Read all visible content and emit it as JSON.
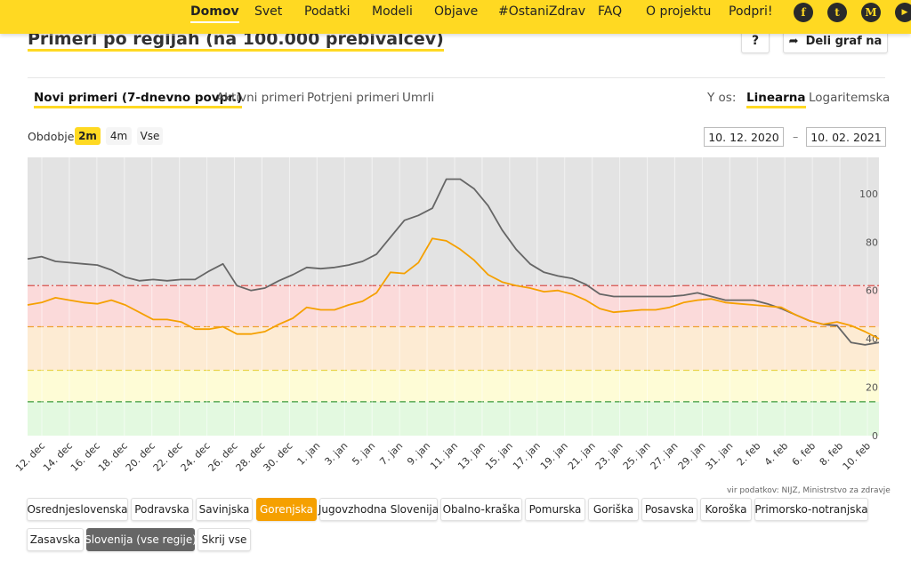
{
  "nav": {
    "items": [
      "Domov",
      "Svet",
      "Podatki",
      "Modeli",
      "Objave",
      "#OstaniZdrav",
      "FAQ",
      "O projektu",
      "Podpri!"
    ],
    "active": "Domov",
    "social": [
      {
        "icon": "facebook-icon",
        "glyph": "f"
      },
      {
        "icon": "twitter-icon",
        "glyph": "t"
      },
      {
        "icon": "medium-icon",
        "glyph": "M"
      },
      {
        "icon": "youtube-icon",
        "glyph": "▶"
      }
    ]
  },
  "title": "Primeri po regijah (na 100.000 prebivalcev)",
  "help_label": "?",
  "share_label": "Deli graf na",
  "tabs": [
    "Novi primeri (7-dnevno povpr.)",
    "Aktivni primeri",
    "Potrjeni primeri",
    "Umrli"
  ],
  "yaxis_label": "Y os:",
  "yaxis_options": [
    "Linearna",
    "Logaritemska"
  ],
  "period": {
    "label": "Obdobje",
    "options": [
      "2m",
      "4m",
      "Vse"
    ],
    "active": "2m"
  },
  "dates": {
    "from": "10. 12. 2020",
    "separator": "–",
    "to": "10. 02. 2021"
  },
  "source": "vir podatkov: NIJZ, Ministrstvo za zdravje",
  "regions": [
    "Osrednjeslovenska",
    "Podravska",
    "Savinjska",
    "Gorenjska",
    "Jugovzhodna Slovenija",
    "Obalno-kraška",
    "Pomurska",
    "Goriška",
    "Posavska",
    "Koroška",
    "Primorsko-notranjska",
    "Zasavska",
    "Slovenija (vse regije)",
    "Skrij vse"
  ],
  "colors": {
    "accent": "#ffd922",
    "gorenjska": "#f5a000",
    "slovenija": "#666666"
  },
  "chart_data": {
    "type": "line",
    "y_ticks": [
      0,
      20,
      40,
      60,
      80,
      100
    ],
    "ylim": [
      0,
      115
    ],
    "x_ticks": [
      "12. dec",
      "14. dec",
      "16. dec",
      "18. dec",
      "20. dec",
      "22. dec",
      "24. dec",
      "26. dec",
      "28. dec",
      "30. dec",
      "1. jan",
      "3. jan",
      "5. jan",
      "7. jan",
      "9. jan",
      "11. jan",
      "13. jan",
      "15. jan",
      "17. jan",
      "19. jan",
      "21. jan",
      "23. jan",
      "25. jan",
      "27. jan",
      "29. jan",
      "31. jan",
      "2. feb",
      "4. feb",
      "6. feb",
      "8. feb",
      "10. feb"
    ],
    "bands": [
      {
        "from": 62,
        "to": 115,
        "color": "#e3e3e3",
        "line_color": "#d9534f"
      },
      {
        "from": 45,
        "to": 62,
        "color": "#fbdada",
        "line_color": "#f0a030"
      },
      {
        "from": 27,
        "to": 45,
        "color": "#fdebd3",
        "line_color": "#e8d44d"
      },
      {
        "from": 14,
        "to": 27,
        "color": "#fefcd6",
        "line_color": "#3a9a3a"
      },
      {
        "from": 0,
        "to": 14,
        "color": "#e3f9e0",
        "line_color": null
      }
    ],
    "threshold_lines": [
      62,
      45,
      27,
      14
    ],
    "series": [
      {
        "name": "Slovenija (vse regije)",
        "color": "#666666",
        "values": [
          73,
          74,
          72,
          71.5,
          71,
          70.5,
          68.5,
          65.5,
          64,
          64.5,
          64,
          64.5,
          64.5,
          68,
          71,
          62,
          60,
          61,
          64,
          66.5,
          69.5,
          69,
          69.5,
          70.5,
          72,
          75,
          82,
          89,
          91,
          94,
          106,
          106,
          102,
          95,
          85,
          77,
          71,
          67.5,
          66,
          65,
          62.5,
          58.5,
          57.5,
          57.5,
          57.5,
          57.5,
          57.5,
          58,
          59,
          57.5,
          56,
          56,
          56,
          54.5,
          52.5,
          50,
          47.5,
          46,
          45.5,
          38.5,
          37.5,
          38.5
        ]
      },
      {
        "name": "Gorenjska",
        "color": "#f5a000",
        "values": [
          54,
          55,
          57,
          56,
          55,
          54.5,
          56,
          54,
          51,
          48,
          48,
          47,
          44,
          44,
          45,
          42,
          42,
          43,
          46,
          48.5,
          53,
          52,
          52,
          54,
          55.5,
          59,
          67.5,
          67,
          71.5,
          81.5,
          80.5,
          77,
          72.5,
          66.5,
          63.5,
          62,
          61,
          59.5,
          60,
          58.5,
          56,
          52.5,
          51,
          51.5,
          52,
          52,
          53,
          55,
          56,
          56.5,
          55,
          54.5,
          54,
          53.5,
          53,
          50,
          47.5,
          46,
          47,
          45.5,
          43,
          40
        ]
      }
    ]
  }
}
